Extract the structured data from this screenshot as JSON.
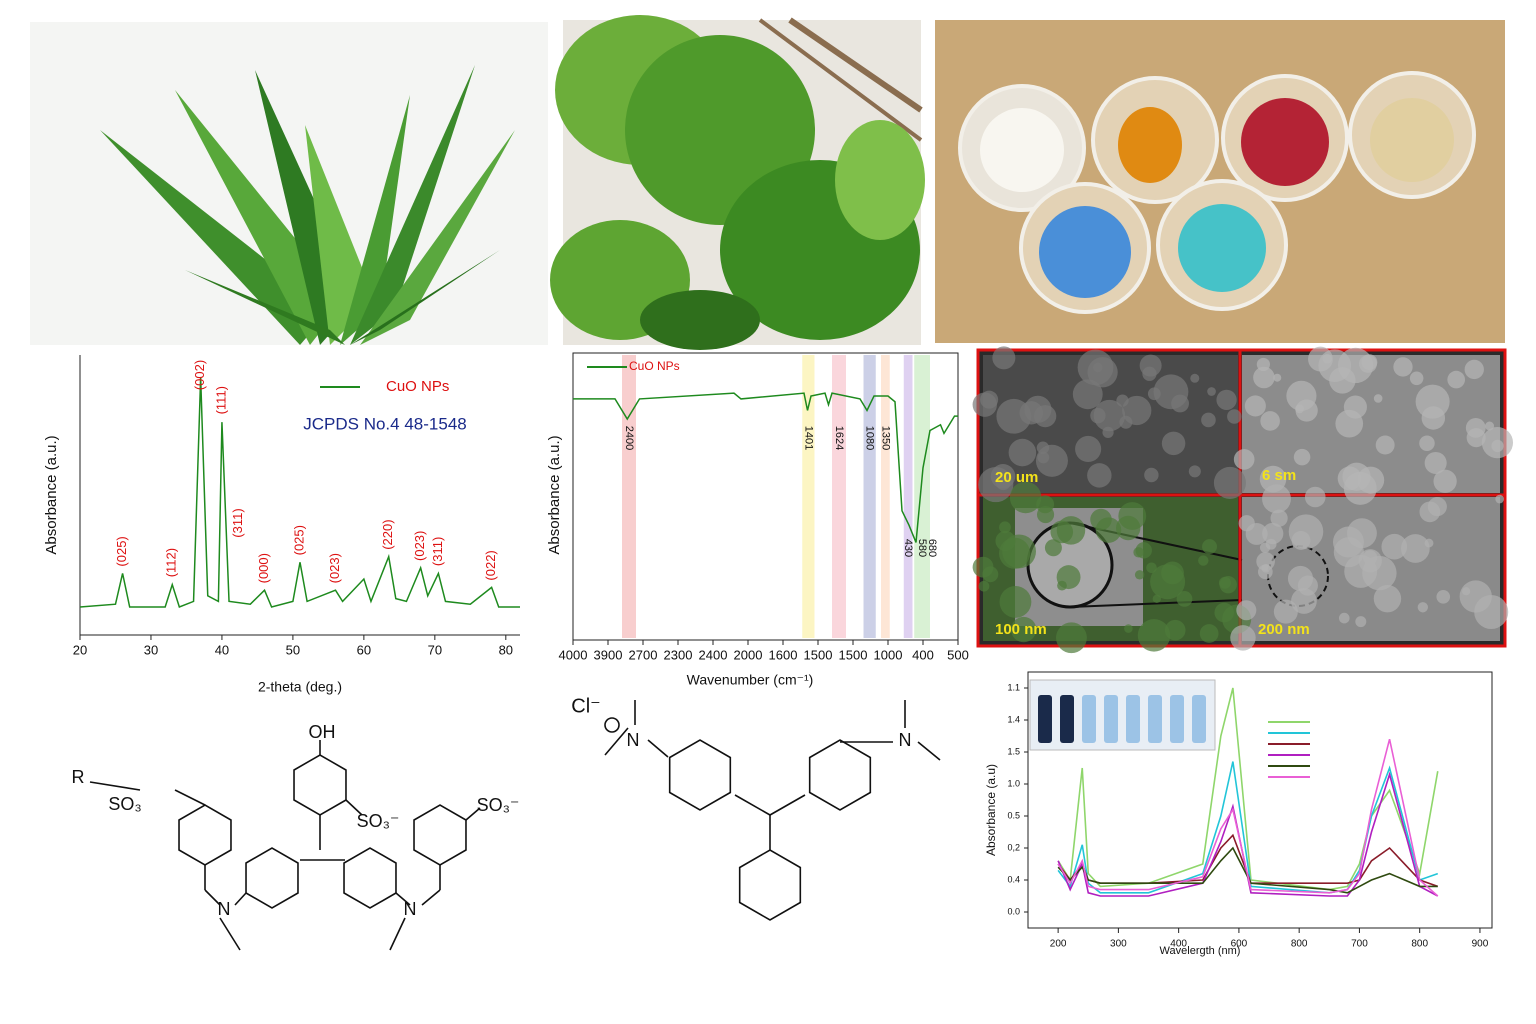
{
  "chart_data": [
    {
      "type": "line",
      "xlabel": "2-theta (deg.)",
      "ylabel": "Absorbance (a.u.)",
      "note": "JCPDS No.4 48-1548",
      "xlim": [
        20,
        82
      ],
      "xticks": [
        20,
        30,
        40,
        50,
        60,
        70,
        80
      ],
      "ylim": [
        0,
        100
      ],
      "series": [
        {
          "name": "CuO NPs",
          "color": "#1e8a1e",
          "x": [
            20,
            25,
            26,
            27,
            32,
            33,
            34,
            36,
            37,
            38,
            39.5,
            40,
            41,
            44,
            46,
            47,
            50,
            51,
            52,
            56,
            57,
            60,
            61,
            63.5,
            64.5,
            66,
            68,
            69,
            70.5,
            71.5,
            75,
            78,
            79,
            82
          ],
          "values": [
            10,
            11,
            22,
            10,
            10,
            18,
            10,
            12,
            92,
            14,
            12,
            76,
            12,
            11,
            16,
            10,
            12,
            26,
            12,
            16,
            12,
            20,
            12,
            28,
            13,
            12,
            24,
            14,
            22,
            12,
            11,
            17,
            10,
            10
          ]
        }
      ],
      "annotations": [
        {
          "x": 26,
          "text": "(025)"
        },
        {
          "x": 33,
          "text": "(112)"
        },
        {
          "x": 37,
          "text": "(002)"
        },
        {
          "x": 40,
          "text": "(111)"
        },
        {
          "x": 40.2,
          "text": "(311)"
        },
        {
          "x": 46,
          "text": "(000)"
        },
        {
          "x": 51,
          "text": "(025)"
        },
        {
          "x": 56,
          "text": "(023)"
        },
        {
          "x": 63.5,
          "text": "(220)"
        },
        {
          "x": 68,
          "text": "(023)"
        },
        {
          "x": 70.5,
          "text": "(311)"
        },
        {
          "x": 78,
          "text": "(022)"
        }
      ]
    },
    {
      "type": "line",
      "xlabel": "Wavenumber (cm⁻¹)",
      "ylabel": "Absorbance (a.u.)",
      "xlim": [
        0,
        11
      ],
      "ylim": [
        0,
        100
      ],
      "xticks": [
        {
          "value": 0,
          "label": "4000"
        },
        {
          "value": 1,
          "label": "3900"
        },
        {
          "value": 2,
          "label": "2700"
        },
        {
          "value": 3,
          "label": "2300"
        },
        {
          "value": 4,
          "label": "2400"
        },
        {
          "value": 5,
          "label": "2000"
        },
        {
          "value": 6,
          "label": "1600"
        },
        {
          "value": 7,
          "label": "1500"
        },
        {
          "value": 8,
          "label": "1500"
        },
        {
          "value": 9,
          "label": "1000"
        },
        {
          "value": 10,
          "label": "400"
        },
        {
          "value": 11,
          "label": "500"
        }
      ],
      "series": [
        {
          "name": "CuO NPs",
          "color": "#1e8a1e",
          "x": [
            0,
            1.2,
            1.55,
            1.9,
            4.6,
            4.8,
            6.6,
            6.7,
            6.8,
            7.2,
            7.3,
            7.4,
            8.2,
            8.4,
            8.6,
            9.0,
            9.2,
            9.4,
            9.6,
            9.8,
            10.0,
            10.2,
            10.5,
            10.6,
            10.9,
            11
          ],
          "values": [
            84,
            84,
            77,
            84,
            86,
            84,
            86,
            80,
            85,
            86,
            82,
            86,
            84,
            80,
            85,
            85,
            83,
            45,
            40,
            34,
            60,
            73,
            75,
            72,
            78,
            78
          ]
        }
      ],
      "bands": [
        {
          "x0": 1.4,
          "x1": 1.8,
          "color": "#f7c6c6",
          "labels": [
            "2400"
          ]
        },
        {
          "x0": 6.55,
          "x1": 6.9,
          "color": "#fbf3b8",
          "labels": [
            "1401"
          ]
        },
        {
          "x0": 7.4,
          "x1": 7.8,
          "color": "#f9cfd6",
          "labels": [
            "1624"
          ]
        },
        {
          "x0": 8.3,
          "x1": 8.65,
          "color": "#c3c8e3",
          "labels": [
            "1080"
          ]
        },
        {
          "x0": 8.8,
          "x1": 9.05,
          "color": "#fde2cf",
          "labels": [
            "1350"
          ]
        },
        {
          "x0": 9.45,
          "x1": 9.7,
          "color": "#d9c9ee",
          "labels": [
            "430"
          ]
        },
        {
          "x0": 9.75,
          "x1": 10.2,
          "color": "#d2efcc",
          "labels": [
            "580",
            "680"
          ]
        }
      ]
    },
    {
      "type": "line",
      "xlabel": "Wavelergth (nm)",
      "ylabel": "Absorbance (a.u)",
      "xlim": [
        -0.5,
        7.2
      ],
      "ylim": [
        -0.5,
        7.5
      ],
      "xticks": [
        {
          "value": 0,
          "label": "200"
        },
        {
          "value": 1,
          "label": "300"
        },
        {
          "value": 2,
          "label": "400"
        },
        {
          "value": 3,
          "label": "600"
        },
        {
          "value": 4,
          "label": "800"
        },
        {
          "value": 5,
          "label": "700"
        },
        {
          "value": 6,
          "label": "800"
        },
        {
          "value": 7,
          "label": "900"
        }
      ],
      "yticks": [
        {
          "value": 0,
          "label": "0.0"
        },
        {
          "value": 1,
          "label": "0.4"
        },
        {
          "value": 2,
          "label": "0,2"
        },
        {
          "value": 3,
          "label": "0.5"
        },
        {
          "value": 4,
          "label": "1.0"
        },
        {
          "value": 5,
          "label": "1.5"
        },
        {
          "value": 6,
          "label": "1.4"
        },
        {
          "value": 7,
          "label": "1.1"
        }
      ],
      "x": [
        0,
        0.2,
        0.4,
        0.5,
        0.7,
        1.5,
        2.4,
        2.7,
        2.9,
        3.2,
        4.5,
        4.8,
        5.0,
        5.2,
        5.5,
        6.0,
        6.3
      ],
      "series": [
        {
          "color": "#8fd66b",
          "values": [
            1.6,
            1.0,
            4.5,
            1.2,
            0.8,
            0.9,
            1.5,
            5.5,
            7.0,
            1.0,
            0.7,
            0.8,
            1.5,
            3.0,
            3.8,
            1.2,
            4.4
          ]
        },
        {
          "color": "#22c5d8",
          "values": [
            1.3,
            0.8,
            2.1,
            0.9,
            0.6,
            0.6,
            1.2,
            3.0,
            4.7,
            0.8,
            0.6,
            0.7,
            1.3,
            3.0,
            4.5,
            1.0,
            1.2
          ]
        },
        {
          "color": "#8a1c2a",
          "values": [
            1.5,
            1.0,
            1.5,
            1.0,
            0.9,
            0.9,
            1.0,
            2.0,
            2.4,
            0.9,
            0.9,
            0.9,
            1.0,
            1.6,
            2.0,
            1.0,
            0.8
          ]
        },
        {
          "color": "#b01fc0",
          "values": [
            1.6,
            0.7,
            1.5,
            0.6,
            0.5,
            0.5,
            0.9,
            2.2,
            3.3,
            0.6,
            0.5,
            0.5,
            1.0,
            2.5,
            4.3,
            0.8,
            0.5
          ]
        },
        {
          "color": "#2f4a10",
          "values": [
            1.4,
            1.0,
            1.4,
            1.0,
            0.9,
            0.9,
            0.9,
            1.6,
            2.0,
            0.9,
            0.7,
            0.6,
            0.8,
            1.0,
            1.2,
            0.8,
            0.8
          ]
        },
        {
          "color": "#e95fd5",
          "values": [
            1.5,
            0.9,
            1.6,
            0.8,
            0.7,
            0.7,
            1.1,
            2.6,
            3.2,
            0.7,
            0.6,
            0.7,
            1.2,
            3.2,
            5.4,
            1.0,
            0.5
          ]
        }
      ]
    }
  ],
  "sem": {
    "scale_bars": [
      "20 um",
      "6 sm",
      "100 nm",
      "200 nm"
    ]
  },
  "structure_1": {
    "labels": [
      "OH",
      "R",
      "SO₃",
      "SO₃⁻",
      "SO₃⁻",
      "N",
      "N"
    ]
  },
  "structure_2": {
    "labels": [
      "Cl⁻",
      "N",
      "N"
    ]
  }
}
